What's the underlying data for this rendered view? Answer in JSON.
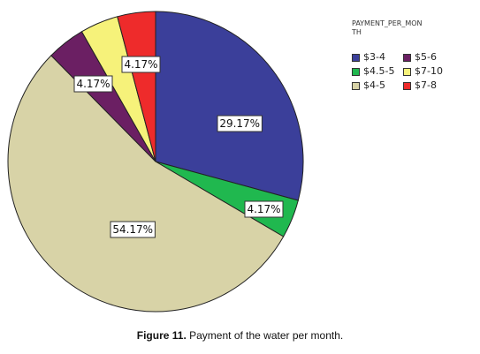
{
  "chart_data": {
    "type": "pie",
    "legend_title": "PAYMENT_PER_MONTH",
    "legend_placement": "top-right",
    "slices": [
      {
        "label": "$3-4",
        "value": 29.17,
        "data_label": "29.17%",
        "color": "#3b3f9a"
      },
      {
        "label": "$4.5-5",
        "value": 4.17,
        "data_label": "4.17%",
        "color": "#20b84f"
      },
      {
        "label": "$4-5",
        "value": 54.17,
        "data_label": "54.17%",
        "color": "#d8d3a7"
      },
      {
        "label": "$5-6",
        "value": 4.17,
        "data_label": "4.17%",
        "color": "#6b1f63"
      },
      {
        "label": "$7-10",
        "value": 4.17,
        "data_label": "4.17%",
        "color": "#f6f27a"
      },
      {
        "label": "$7-8",
        "value": 4.17,
        "data_label": "4.17%",
        "color": "#ee2b2b"
      }
    ]
  },
  "caption": {
    "prefix": "Figure 11.",
    "text": " Payment of the water per month."
  }
}
